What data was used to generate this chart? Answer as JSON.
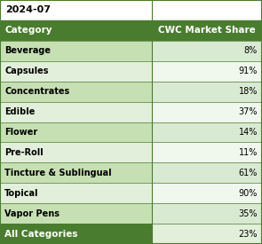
{
  "title": "2024-07",
  "header_col1": "Category",
  "header_col2": "CWC Market Share",
  "categories": [
    "Beverage",
    "Capsules",
    "Concentrates",
    "Edible",
    "Flower",
    "Pre-Roll",
    "Tincture & Sublingual",
    "Topical",
    "Vapor Pens"
  ],
  "values": [
    "8%",
    "91%",
    "18%",
    "37%",
    "14%",
    "11%",
    "61%",
    "90%",
    "35%"
  ],
  "footer_label": "All Categories",
  "footer_value": "23%",
  "header_bg": "#4a7c2f",
  "header_text": "#ffffff",
  "title_bg": "#ffffff",
  "title_text": "#000000",
  "row_bg_odd": "#c6e0b4",
  "row_bg_even": "#e2efda",
  "value_col_bg_odd": "#d9ead3",
  "value_col_bg_even": "#f0f7ec",
  "footer_bg": "#4a7c2f",
  "footer_text": "#ffffff",
  "footer_value_bg": "#e2efda",
  "footer_value_text": "#000000",
  "border_color": "#4a7c2f"
}
